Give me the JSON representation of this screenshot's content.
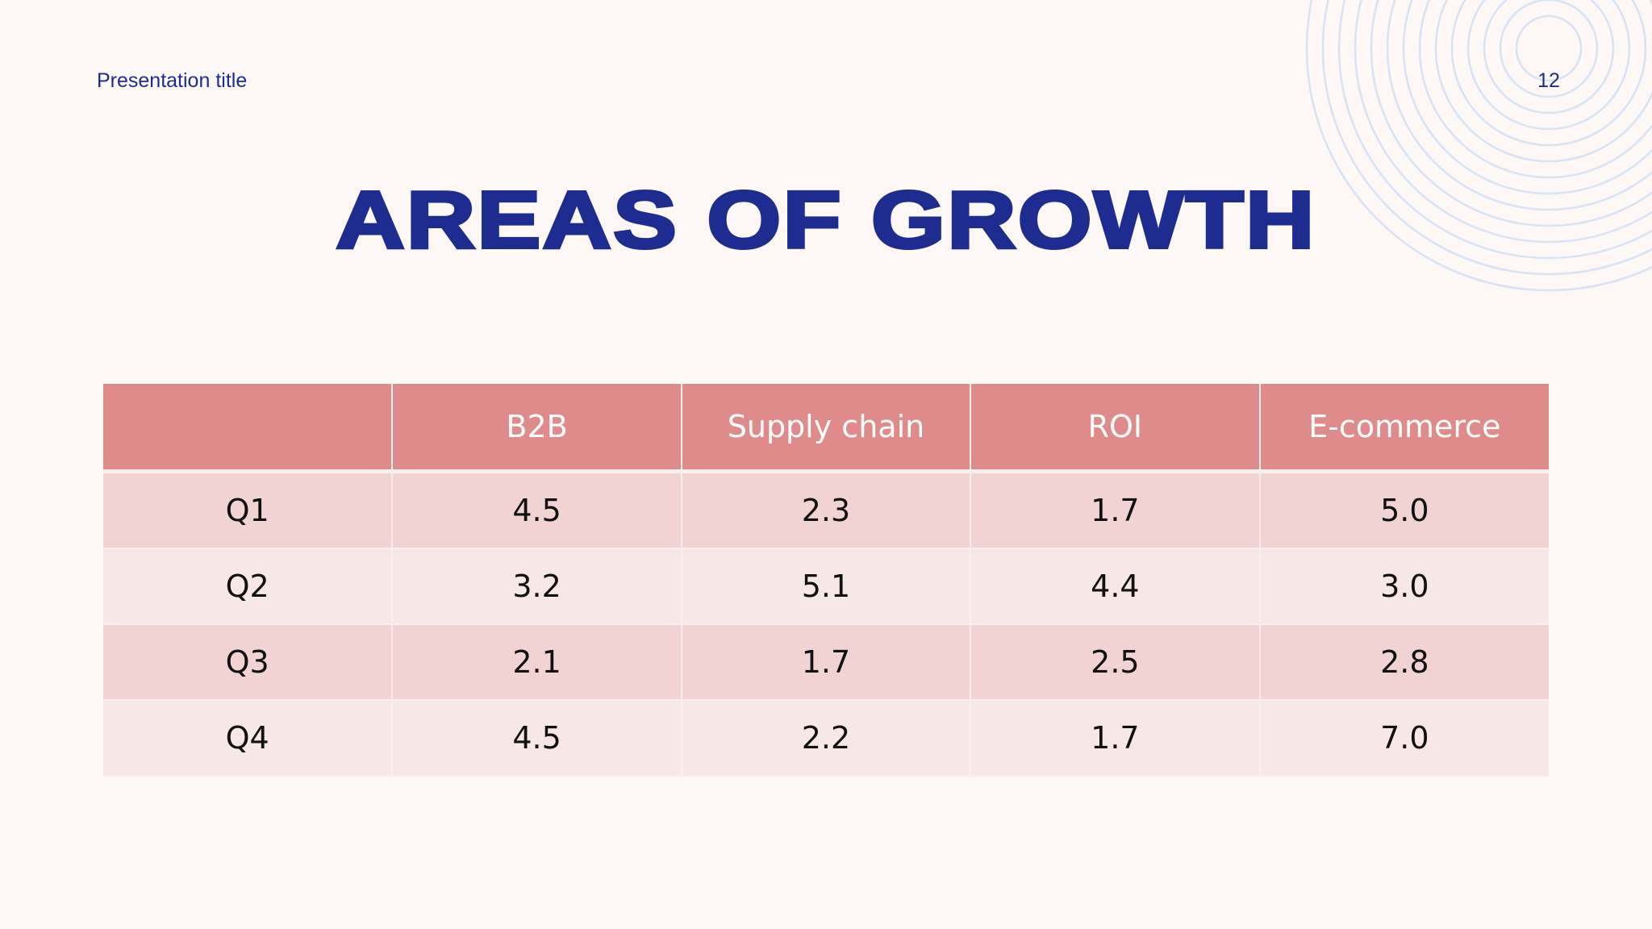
{
  "slide": {
    "header_title": "Presentation title",
    "page_number": "12",
    "title": "AREAS OF GROWTH"
  },
  "table": {
    "columns": [
      "",
      "B2B",
      "Supply chain",
      "ROI",
      "E-commerce"
    ],
    "rows": [
      {
        "label": "Q1",
        "values": [
          "4.5",
          "2.3",
          "1.7",
          "5.0"
        ]
      },
      {
        "label": "Q2",
        "values": [
          "3.2",
          "5.1",
          "4.4",
          "3.0"
        ]
      },
      {
        "label": "Q3",
        "values": [
          "2.1",
          "1.7",
          "2.5",
          "2.8"
        ]
      },
      {
        "label": "Q4",
        "values": [
          "4.5",
          "2.2",
          "1.7",
          "7.0"
        ]
      }
    ]
  },
  "colors": {
    "background": "#FDF8F5",
    "title": "#1F2C8F",
    "header_row": "#DF8B8B",
    "row_dark": "#F1D3D4",
    "row_light": "#F7E7E7",
    "decoration": "#D6E3F6"
  },
  "decoration": {
    "icon": "concentric-arcs-icon"
  }
}
